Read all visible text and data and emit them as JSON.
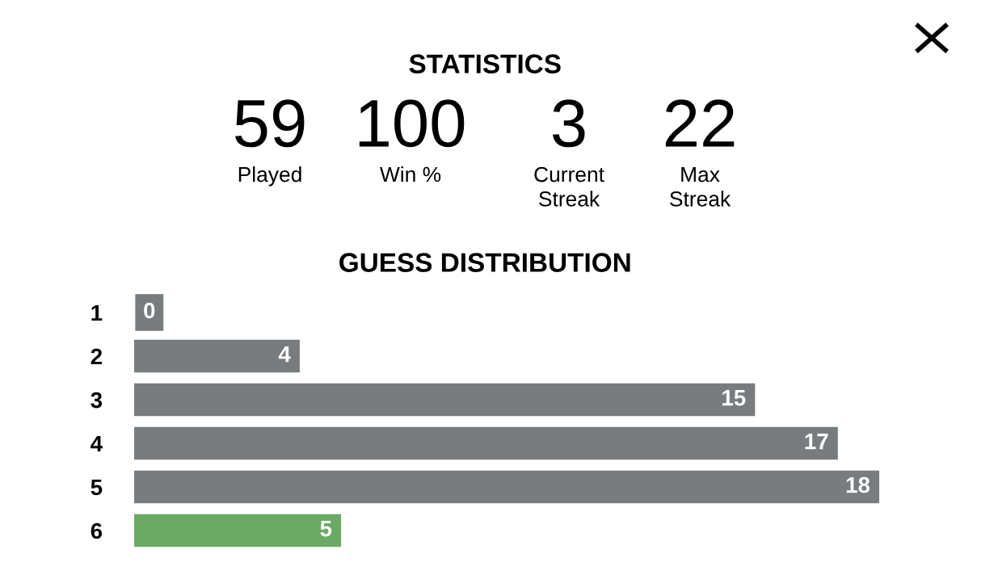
{
  "chart_data": {
    "type": "bar",
    "orientation": "horizontal",
    "title": "STATISTICS",
    "subtitle": "GUESS DISTRIBUTION",
    "annotations": [
      "59",
      "Played",
      "100",
      "Win %",
      "3",
      "Current\nStreak",
      "22",
      "Max\nStreak"
    ],
    "categories": [
      "1",
      "2",
      "3",
      "4",
      "5",
      "6"
    ],
    "values": [
      0,
      4,
      15,
      17,
      18,
      5
    ],
    "colors": [
      "#787c7e",
      "#787c7e",
      "#787c7e",
      "#787c7e",
      "#787c7e",
      "#6aaa64"
    ],
    "data_labels": true,
    "grid": false,
    "legend": false
  }
}
